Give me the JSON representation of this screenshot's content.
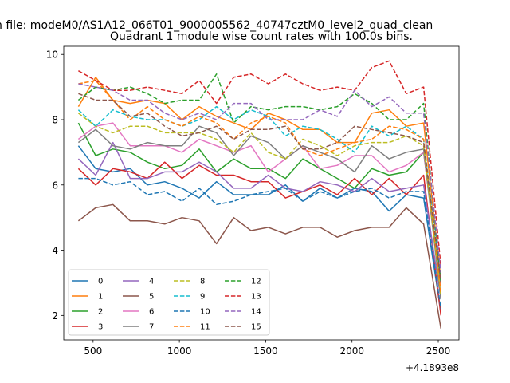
{
  "figure": {
    "suptitle": "n file: modeM0/AS1A12_066T01_9000005562_40747cztM0_level2_quad_clean",
    "offset_label": "+4.1893e8"
  },
  "chart_data": {
    "type": "line",
    "title": "Quadrant 1 module wise count rates with 100.0s bins.",
    "xlabel": "",
    "ylabel": "",
    "x_offset": 418930000,
    "xlim": [
      330,
      2620
    ],
    "ylim": [
      1.25,
      10.25
    ],
    "xticks": [
      500,
      1000,
      1500,
      2000,
      2500
    ],
    "yticks": [
      2,
      4,
      6,
      8,
      10
    ],
    "grid": false,
    "legend": {
      "placement": "lower-left",
      "columns": 4
    },
    "x": [
      418930415,
      418930515,
      418930615,
      418930715,
      418930815,
      418930915,
      418931015,
      418931115,
      418931215,
      418931315,
      418931415,
      418931515,
      418931615,
      418931715,
      418931815,
      418931915,
      418932015,
      418932115,
      418932215,
      418932315,
      418932415,
      418932515
    ],
    "series": [
      {
        "name": "0",
        "color": "#1f77b4",
        "dash": "solid",
        "values": [
          7.2,
          6.5,
          6.4,
          6.5,
          6.0,
          6.1,
          5.9,
          5.6,
          6.1,
          5.7,
          5.7,
          5.7,
          6.0,
          5.5,
          5.9,
          5.6,
          5.9,
          5.8,
          5.2,
          5.7,
          5.6,
          2.1
        ]
      },
      {
        "name": "1",
        "color": "#ff7f0e",
        "dash": "solid",
        "values": [
          8.4,
          9.3,
          8.6,
          8.5,
          8.6,
          8.5,
          8.0,
          8.4,
          8.1,
          7.9,
          7.7,
          8.2,
          8.0,
          7.7,
          7.7,
          7.3,
          7.3,
          8.2,
          8.3,
          7.8,
          7.9,
          3.1
        ]
      },
      {
        "name": "2",
        "color": "#2ca02c",
        "dash": "solid",
        "values": [
          7.9,
          6.9,
          7.1,
          7.0,
          6.7,
          6.5,
          6.6,
          7.1,
          6.4,
          6.8,
          6.5,
          6.5,
          6.2,
          6.8,
          6.5,
          6.2,
          5.9,
          6.5,
          6.3,
          6.4,
          7.0,
          2.9
        ]
      },
      {
        "name": "3",
        "color": "#d62728",
        "dash": "solid",
        "values": [
          6.5,
          6.0,
          6.5,
          6.4,
          6.2,
          6.7,
          6.2,
          6.6,
          6.3,
          6.3,
          6.1,
          6.1,
          5.6,
          5.8,
          6.0,
          5.7,
          6.2,
          5.7,
          6.2,
          5.7,
          6.3,
          2.0
        ]
      },
      {
        "name": "4",
        "color": "#9467bd",
        "dash": "solid",
        "values": [
          6.8,
          6.3,
          7.3,
          6.2,
          6.2,
          6.4,
          6.4,
          6.7,
          6.4,
          5.9,
          5.9,
          6.3,
          5.9,
          5.8,
          6.1,
          6.0,
          5.8,
          6.2,
          5.8,
          5.9,
          6.0,
          2.5
        ]
      },
      {
        "name": "5",
        "color": "#8c564b",
        "dash": "solid",
        "values": [
          4.9,
          5.3,
          5.4,
          4.9,
          4.9,
          4.8,
          5.0,
          4.9,
          4.2,
          5.0,
          4.6,
          4.7,
          4.5,
          4.7,
          4.7,
          4.4,
          4.6,
          4.7,
          4.7,
          5.3,
          4.8,
          1.6
        ]
      },
      {
        "name": "6",
        "color": "#e377c2",
        "dash": "solid",
        "values": [
          7.4,
          7.8,
          7.9,
          7.2,
          7.2,
          7.2,
          7.0,
          7.4,
          7.2,
          7.0,
          7.2,
          6.4,
          6.8,
          7.2,
          6.5,
          6.6,
          6.9,
          6.9,
          6.4,
          6.6,
          7.0,
          2.8
        ]
      },
      {
        "name": "7",
        "color": "#7f7f7f",
        "dash": "solid",
        "values": [
          7.3,
          7.7,
          7.2,
          7.1,
          7.3,
          7.2,
          7.2,
          7.8,
          7.6,
          6.9,
          7.5,
          7.3,
          6.8,
          7.2,
          7.0,
          6.8,
          6.4,
          7.2,
          6.8,
          7.0,
          7.1,
          2.5
        ]
      },
      {
        "name": "8",
        "color": "#bcbd22",
        "dash": "dashed",
        "values": [
          8.2,
          7.8,
          7.6,
          7.8,
          7.8,
          7.6,
          7.6,
          7.6,
          7.4,
          7.0,
          7.6,
          7.0,
          6.8,
          7.4,
          7.2,
          6.9,
          7.2,
          7.3,
          7.3,
          7.5,
          7.2,
          2.6
        ]
      },
      {
        "name": "9",
        "color": "#17becf",
        "dash": "dashed",
        "values": [
          8.3,
          7.8,
          8.3,
          8.1,
          8.0,
          8.0,
          7.8,
          8.0,
          8.4,
          8.0,
          8.3,
          8.1,
          7.5,
          7.8,
          7.7,
          7.4,
          7.0,
          7.8,
          7.5,
          7.8,
          7.4,
          3.0
        ]
      },
      {
        "name": "10",
        "color": "#1f77b4",
        "dash": "dashed",
        "values": [
          6.2,
          6.2,
          6.0,
          6.1,
          5.7,
          5.8,
          5.5,
          5.9,
          5.4,
          5.5,
          5.7,
          5.8,
          5.9,
          5.5,
          5.8,
          5.6,
          5.8,
          5.9,
          5.6,
          5.8,
          5.8,
          2.2
        ]
      },
      {
        "name": "11",
        "color": "#ff7f0e",
        "dash": "dashed",
        "values": [
          9.1,
          9.2,
          8.6,
          8.0,
          8.4,
          8.0,
          7.8,
          8.1,
          7.9,
          7.4,
          7.9,
          8.1,
          7.9,
          7.1,
          6.9,
          7.1,
          7.3,
          7.4,
          7.8,
          7.7,
          7.4,
          2.7
        ]
      },
      {
        "name": "12",
        "color": "#2ca02c",
        "dash": "dashed",
        "values": [
          8.6,
          9.0,
          8.9,
          9.0,
          8.8,
          8.5,
          8.6,
          8.6,
          9.4,
          7.9,
          8.4,
          8.3,
          8.4,
          8.4,
          8.3,
          8.4,
          8.8,
          8.5,
          8.0,
          8.0,
          8.5,
          3.0
        ]
      },
      {
        "name": "13",
        "color": "#d62728",
        "dash": "dashed",
        "values": [
          9.5,
          9.2,
          8.9,
          8.9,
          9.0,
          8.9,
          8.8,
          9.2,
          8.5,
          9.3,
          9.4,
          9.1,
          9.4,
          9.1,
          8.9,
          9.0,
          8.9,
          9.6,
          9.8,
          8.8,
          9.0,
          3.5
        ]
      },
      {
        "name": "14",
        "color": "#9467bd",
        "dash": "dashed",
        "values": [
          9.1,
          9.0,
          8.9,
          8.6,
          8.6,
          8.2,
          8.0,
          8.2,
          8.0,
          8.5,
          8.5,
          8.0,
          8.0,
          8.0,
          8.3,
          8.1,
          8.9,
          8.4,
          8.7,
          8.2,
          8.2,
          3.3
        ]
      },
      {
        "name": "15",
        "color": "#8c564b",
        "dash": "dashed",
        "values": [
          8.8,
          8.6,
          8.6,
          8.1,
          8.2,
          7.8,
          7.5,
          7.6,
          7.8,
          7.4,
          7.7,
          7.7,
          7.8,
          7.1,
          7.1,
          7.3,
          7.8,
          7.7,
          7.6,
          7.5,
          7.3,
          3.0
        ]
      }
    ]
  }
}
